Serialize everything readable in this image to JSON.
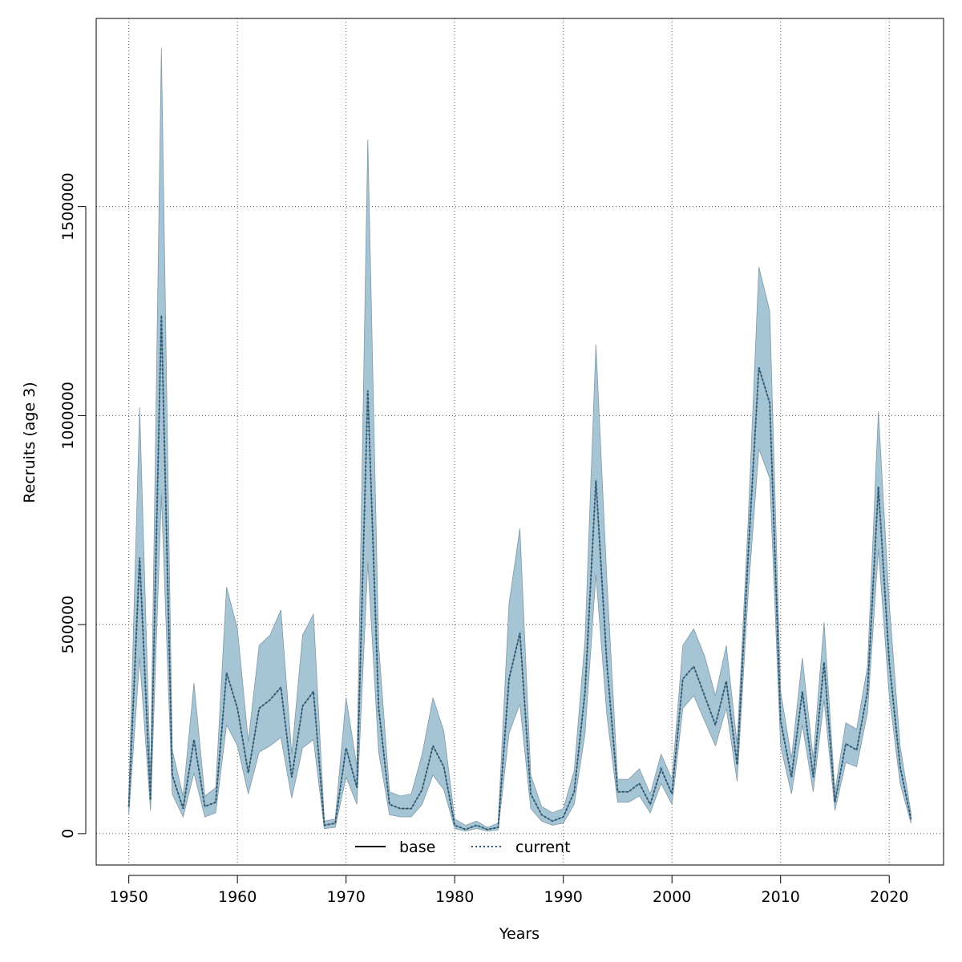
{
  "chart_data": {
    "type": "line",
    "xlabel": "Years",
    "ylabel": "Recruits (age 3)",
    "xlim": [
      1947,
      2025
    ],
    "ylim": [
      -75000,
      1950000
    ],
    "x_ticks": [
      1950,
      1960,
      1970,
      1980,
      1990,
      2000,
      2010,
      2020
    ],
    "x_tick_labels": [
      "1950",
      "1960",
      "1970",
      "1980",
      "1990",
      "2000",
      "2010",
      "2020"
    ],
    "y_ticks": [
      0,
      500000,
      1000000,
      1500000
    ],
    "y_tick_labels": [
      "0",
      "500000",
      "1000000",
      "1500000"
    ],
    "grid": true,
    "legend_position": "bottom-center",
    "colors": {
      "band_fill": "#a5c4d4",
      "band_edge": "#7f9aa8",
      "base": "#000000",
      "current": "#1f5a80",
      "grid": "#555555"
    },
    "x": [
      1950,
      1951,
      1952,
      1953,
      1954,
      1955,
      1956,
      1957,
      1958,
      1959,
      1960,
      1961,
      1962,
      1963,
      1964,
      1965,
      1966,
      1967,
      1968,
      1969,
      1970,
      1971,
      1972,
      1973,
      1974,
      1975,
      1976,
      1977,
      1978,
      1979,
      1980,
      1981,
      1982,
      1983,
      1984,
      1985,
      1986,
      1987,
      1988,
      1989,
      1990,
      1991,
      1992,
      1993,
      1994,
      1995,
      1996,
      1997,
      1998,
      1999,
      2000,
      2001,
      2002,
      2003,
      2004,
      2005,
      2006,
      2007,
      2008,
      2009,
      2010,
      2011,
      2012,
      2013,
      2014,
      2015,
      2016,
      2017,
      2018,
      2019,
      2020,
      2021,
      2022
    ],
    "series": [
      {
        "name": "base",
        "style": "solid",
        "values": [
          65000,
          660000,
          80000,
          1240000,
          140000,
          60000,
          225000,
          65000,
          75000,
          385000,
          300000,
          145000,
          300000,
          320000,
          350000,
          135000,
          305000,
          340000,
          20000,
          25000,
          205000,
          110000,
          1060000,
          300000,
          70000,
          60000,
          60000,
          105000,
          210000,
          160000,
          20000,
          10000,
          20000,
          10000,
          15000,
          370000,
          480000,
          95000,
          45000,
          30000,
          40000,
          100000,
          340000,
          845000,
          410000,
          100000,
          100000,
          120000,
          70000,
          155000,
          95000,
          370000,
          400000,
          330000,
          260000,
          365000,
          165000,
          660000,
          1115000,
          1030000,
          270000,
          135000,
          340000,
          135000,
          410000,
          75000,
          215000,
          200000,
          340000,
          830000,
          410000,
          160000,
          35000
        ]
      },
      {
        "name": "current",
        "style": "dotted",
        "values": [
          65000,
          660000,
          80000,
          1240000,
          140000,
          60000,
          225000,
          65000,
          75000,
          385000,
          300000,
          145000,
          300000,
          320000,
          350000,
          135000,
          305000,
          340000,
          20000,
          25000,
          205000,
          110000,
          1060000,
          300000,
          70000,
          60000,
          60000,
          105000,
          210000,
          160000,
          20000,
          10000,
          20000,
          10000,
          15000,
          370000,
          480000,
          95000,
          45000,
          30000,
          40000,
          100000,
          340000,
          845000,
          410000,
          100000,
          100000,
          120000,
          70000,
          155000,
          95000,
          370000,
          400000,
          330000,
          260000,
          365000,
          165000,
          660000,
          1115000,
          1030000,
          270000,
          135000,
          340000,
          135000,
          410000,
          75000,
          215000,
          200000,
          340000,
          830000,
          410000,
          160000,
          35000
        ]
      }
    ],
    "band": {
      "upper": [
        90000,
        1020000,
        130000,
        1880000,
        200000,
        90000,
        360000,
        90000,
        110000,
        590000,
        490000,
        220000,
        450000,
        475000,
        535000,
        190000,
        475000,
        525000,
        30000,
        35000,
        325000,
        160000,
        1660000,
        450000,
        100000,
        90000,
        95000,
        190000,
        325000,
        245000,
        35000,
        20000,
        30000,
        15000,
        25000,
        550000,
        730000,
        140000,
        65000,
        50000,
        60000,
        150000,
        465000,
        1170000,
        610000,
        130000,
        130000,
        155000,
        95000,
        190000,
        130000,
        450000,
        490000,
        425000,
        330000,
        450000,
        215000,
        740000,
        1355000,
        1250000,
        340000,
        180000,
        420000,
        180000,
        505000,
        100000,
        265000,
        250000,
        400000,
        1010000,
        550000,
        210000,
        50000
      ],
      "lower": [
        45000,
        420000,
        55000,
        810000,
        95000,
        40000,
        145000,
        40000,
        50000,
        260000,
        210000,
        95000,
        195000,
        210000,
        230000,
        85000,
        205000,
        225000,
        12000,
        15000,
        135000,
        70000,
        650000,
        195000,
        45000,
        40000,
        40000,
        70000,
        140000,
        105000,
        12000,
        6000,
        12000,
        6000,
        9000,
        240000,
        310000,
        60000,
        30000,
        20000,
        25000,
        70000,
        240000,
        620000,
        285000,
        75000,
        75000,
        90000,
        50000,
        120000,
        70000,
        300000,
        330000,
        270000,
        210000,
        300000,
        125000,
        570000,
        920000,
        850000,
        210000,
        95000,
        260000,
        100000,
        320000,
        55000,
        170000,
        160000,
        290000,
        680000,
        330000,
        120000,
        25000
      ]
    }
  }
}
